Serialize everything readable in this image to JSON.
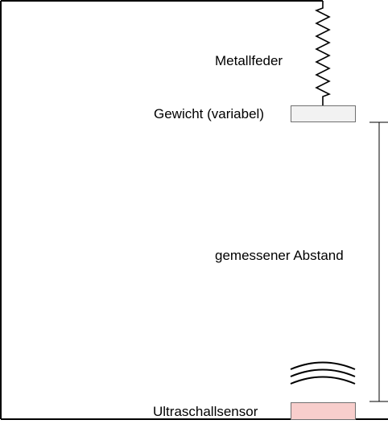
{
  "labels": {
    "spring": "Metallfeder",
    "weight": "Gewicht (variabel)",
    "distance": "gemessener Abstand",
    "sensor": "Ultraschallsensor"
  },
  "colors": {
    "frame": "#000000",
    "weight_fill": "#f2f2f2",
    "sensor_fill": "#f8cecc",
    "box_border": "#707070"
  }
}
